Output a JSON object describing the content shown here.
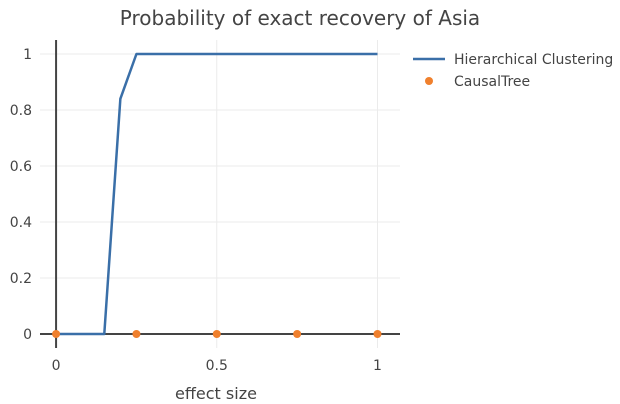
{
  "chart_data": {
    "type": "line",
    "title": "Probability of exact recovery of Asia",
    "xlabel": "effect size",
    "ylabel": "",
    "xlim": [
      -0.05,
      1.07
    ],
    "ylim": [
      -0.05,
      1.05
    ],
    "x_ticks": [
      0,
      0.5,
      1
    ],
    "x_tick_labels": [
      "0",
      "0.5",
      "1"
    ],
    "y_ticks": [
      0,
      0.2,
      0.4,
      0.6,
      0.8,
      1
    ],
    "y_tick_labels": [
      "0",
      "0.2",
      "0.4",
      "0.6",
      "0.8",
      "1"
    ],
    "grid": true,
    "legend_position": "top-right",
    "series": [
      {
        "name": "Hierarchical Clustering",
        "mode": "line",
        "color": "#3a6fa8",
        "x": [
          0,
          0.05,
          0.1,
          0.15,
          0.2,
          0.25,
          0.3,
          0.4,
          0.5,
          0.6,
          0.7,
          0.8,
          0.9,
          1
        ],
        "y": [
          0,
          0,
          0,
          0,
          0.84,
          1,
          1,
          1,
          1,
          1,
          1,
          1,
          1,
          1
        ]
      },
      {
        "name": "CausalTree",
        "mode": "markers",
        "color": "#f0802d",
        "x": [
          0,
          0.25,
          0.5,
          0.75,
          1
        ],
        "y": [
          0,
          0,
          0,
          0,
          0
        ]
      }
    ]
  }
}
